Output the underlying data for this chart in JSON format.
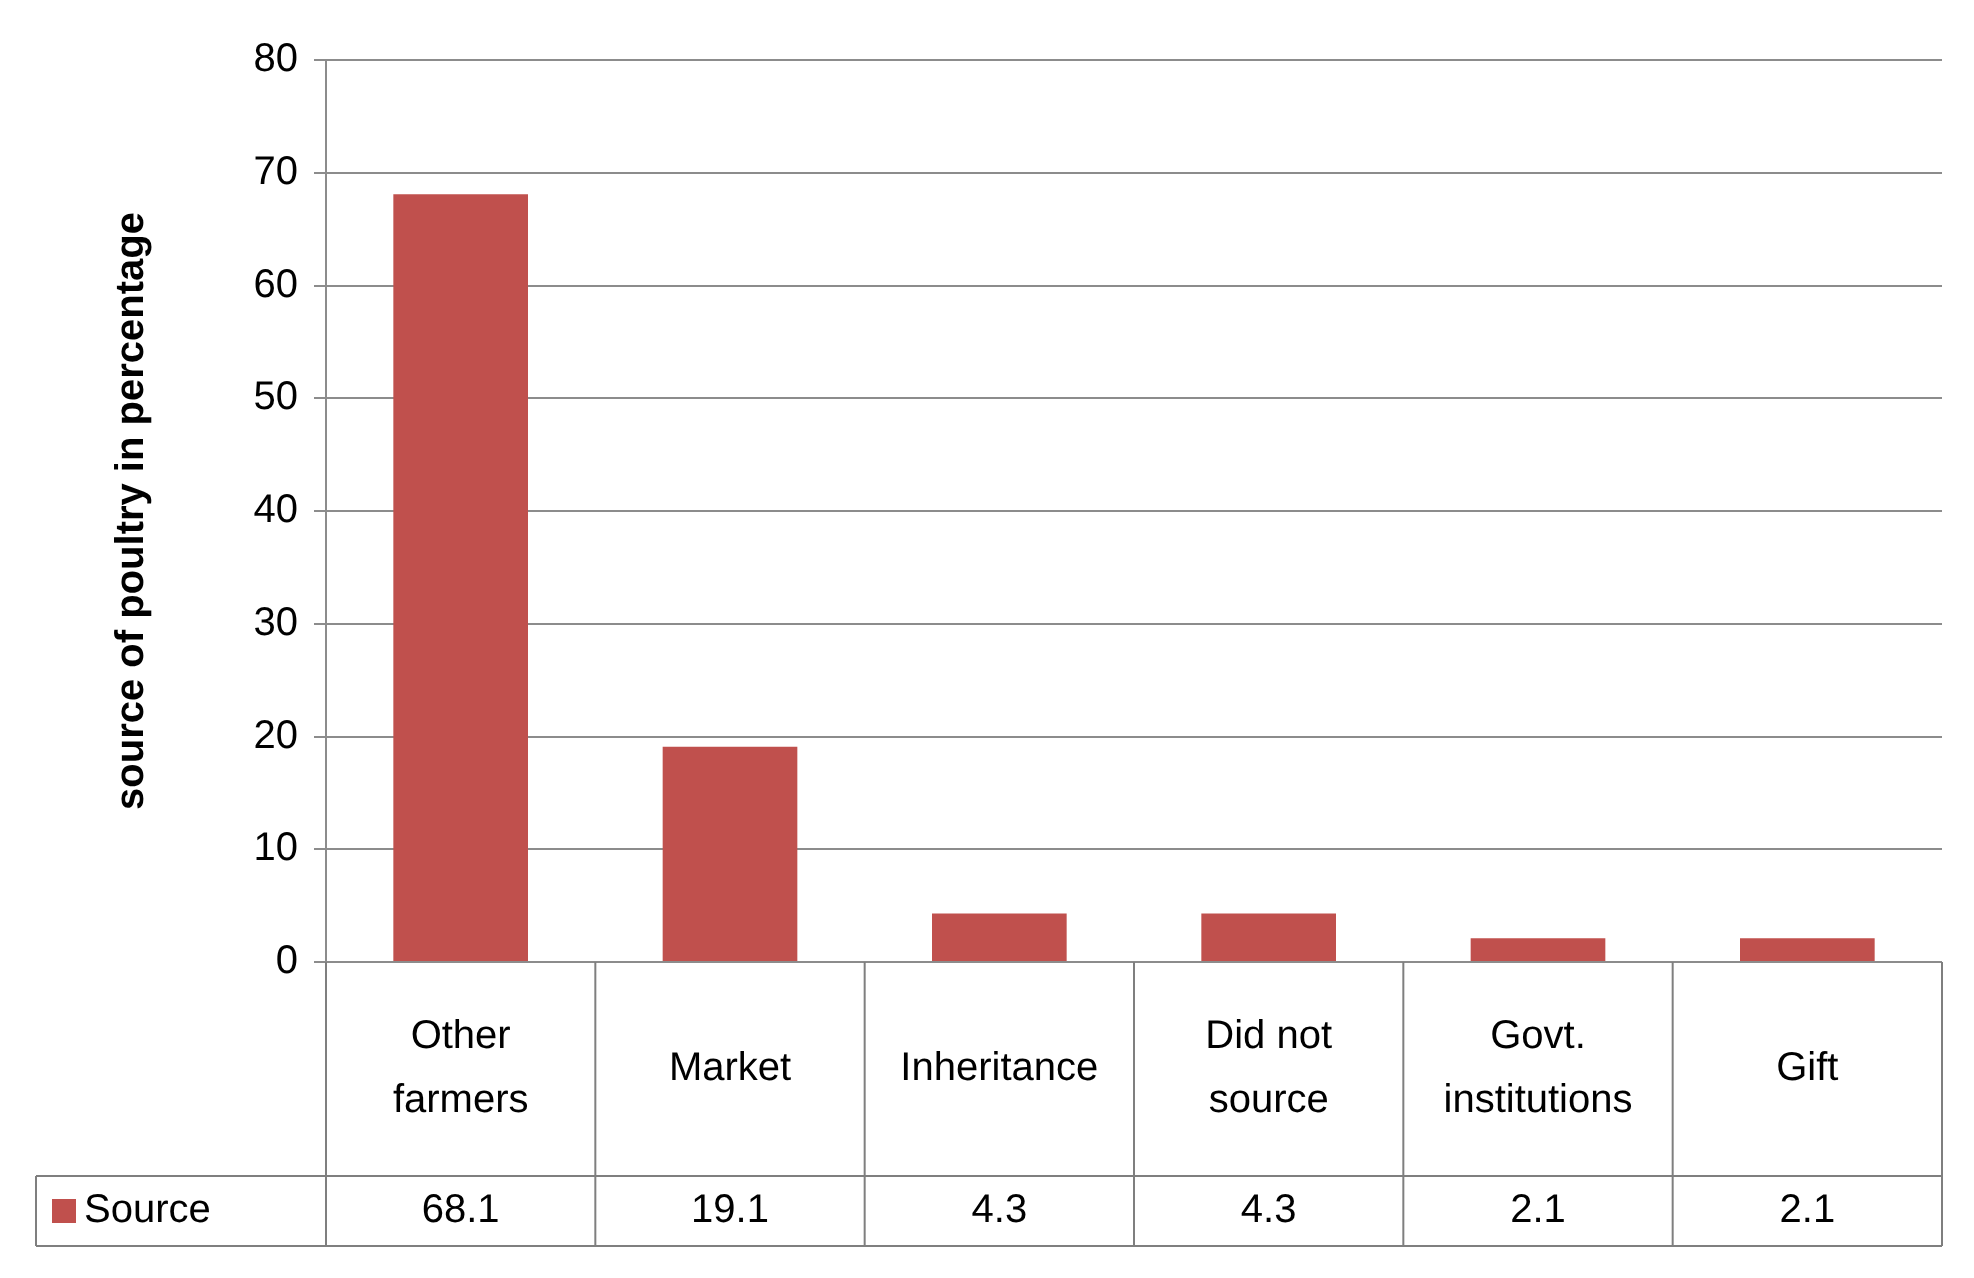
{
  "chart_data": {
    "type": "bar",
    "ylabel": "source of poultry in percentage",
    "categories": [
      "Other farmers",
      "Market",
      "Inheritance",
      "Did not source",
      "Govt. institutions",
      "Gift"
    ],
    "series": [
      {
        "name": "Source",
        "color": "#c0504d",
        "values": [
          68.1,
          19.1,
          4.3,
          4.3,
          2.1,
          2.1
        ]
      }
    ],
    "ylim": [
      0,
      80
    ],
    "yticks": [
      0,
      10,
      20,
      30,
      40,
      50,
      60,
      70,
      80
    ],
    "grid": "y",
    "legend": "bottom",
    "data_labels": true
  }
}
